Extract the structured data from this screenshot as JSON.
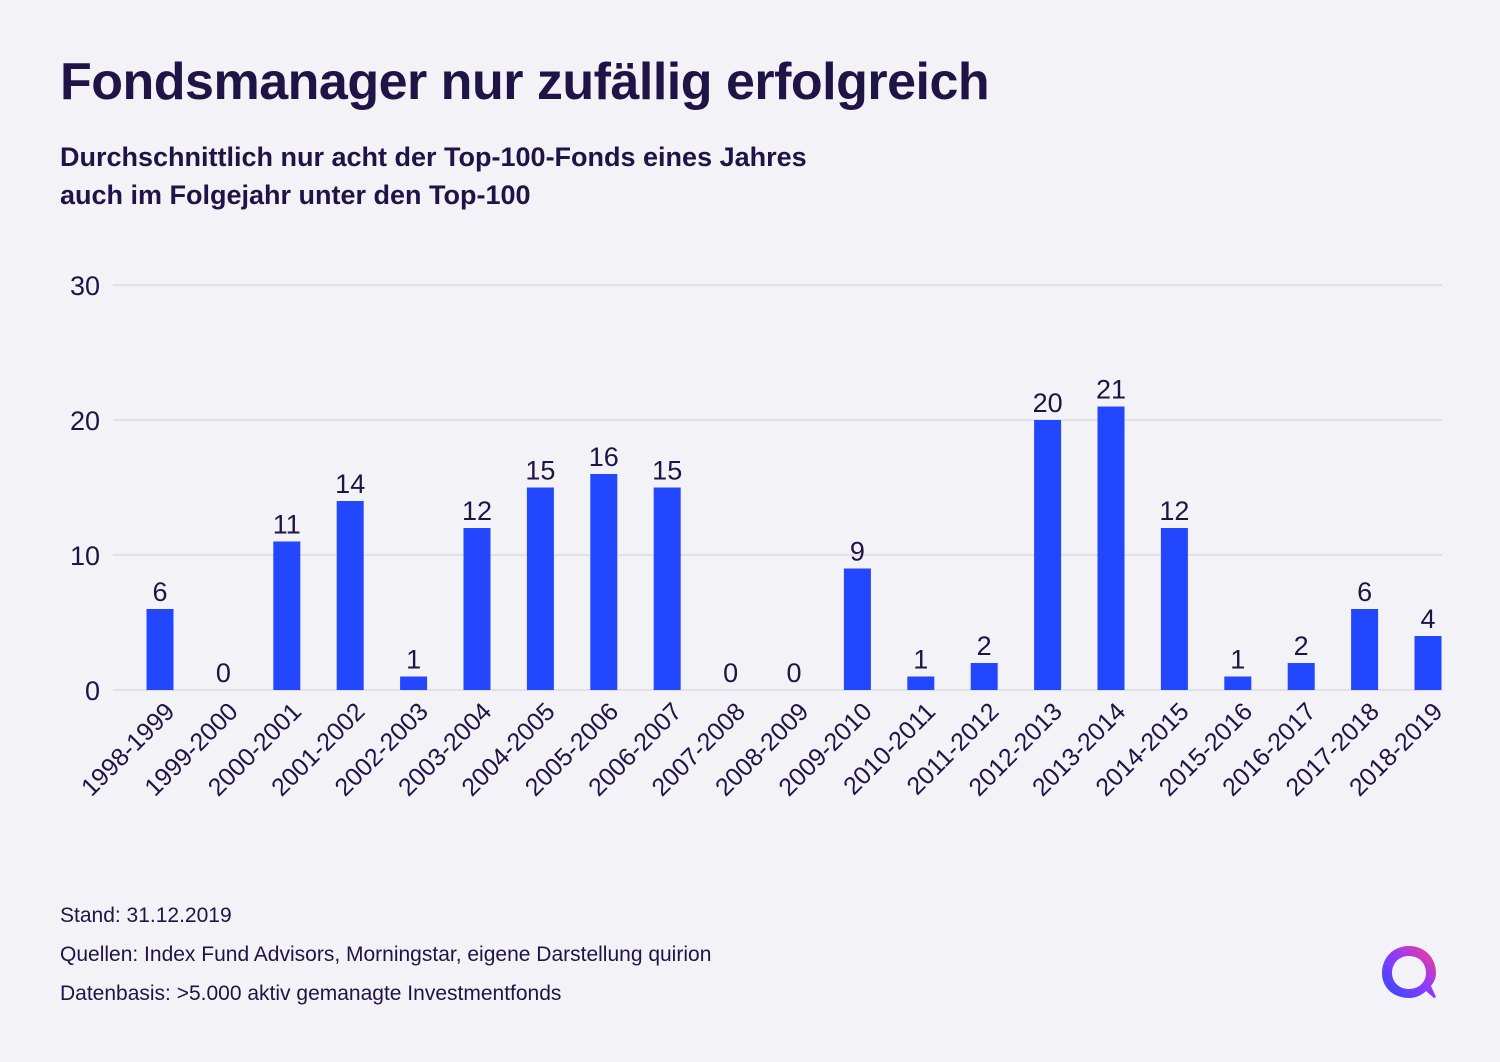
{
  "title": "Fondsmanager nur zufällig erfolgreich",
  "subtitle": {
    "line1": "Durchschnittlich nur acht der Top-100-Fonds eines Jahres",
    "line2": "auch im Folgejahr unter den Top-100"
  },
  "footer": {
    "stand": "Stand: 31.12.2019",
    "quellen": "Quellen: Index Fund Advisors, Morningstar, eigene Darstellung quirion",
    "datenbasis": "Datenbasis: >5.000 aktiv gemanagte Investmentfonds"
  },
  "colors": {
    "bar": "#2347ff",
    "text": "#1e1446",
    "grid": "#cfcdd8",
    "background": "#f3f2f6"
  },
  "logo": {
    "icon": "quirion-logo-icon"
  },
  "chart_data": {
    "type": "bar",
    "title": "Fondsmanager nur zufällig erfolgreich",
    "subtitle": "Durchschnittlich nur acht der Top-100-Fonds eines Jahres auch im Folgejahr unter den Top-100",
    "xlabel": "",
    "ylabel": "",
    "ylim": [
      0,
      30
    ],
    "yticks": [
      0,
      10,
      20,
      30
    ],
    "grid": true,
    "legend": "none",
    "categories": [
      "1998-1999",
      "1999-2000",
      "2000-2001",
      "2001-2002",
      "2002-2003",
      "2003-2004",
      "2004-2005",
      "2005-2006",
      "2006-2007",
      "2007-2008",
      "2008-2009",
      "2009-2010",
      "2010-2011",
      "2011-2012",
      "2012-2013",
      "2013-2014",
      "2014-2015",
      "2015-2016",
      "2016-2017",
      "2017-2018",
      "2018-2019"
    ],
    "values": [
      6,
      0,
      11,
      14,
      1,
      12,
      15,
      16,
      15,
      0,
      0,
      9,
      1,
      2,
      20,
      21,
      12,
      1,
      2,
      6,
      4
    ],
    "data_labels": [
      "6",
      "0",
      "11",
      "14",
      "1",
      "12",
      "15",
      "16",
      "15",
      "0",
      "0",
      "9",
      "1",
      "2",
      "20",
      "21",
      "12",
      "1",
      "2",
      "6",
      "4"
    ]
  }
}
